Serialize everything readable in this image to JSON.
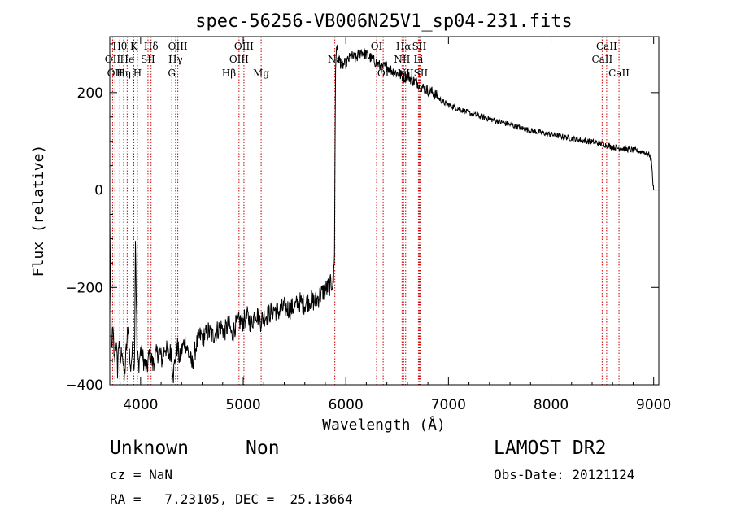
{
  "chart_data": {
    "type": "line",
    "title": "spec-56256-VB006N25V1_sp04-231.fits",
    "xlabel": "Wavelength (Å)",
    "ylabel": "Flux (relative)",
    "xlim": [
      3700,
      9050
    ],
    "ylim": [
      -400,
      315
    ],
    "xticks": [
      4000,
      5000,
      6000,
      7000,
      8000,
      9000
    ],
    "yticks": [
      -400,
      -200,
      0,
      200
    ],
    "spectrum_points": [
      [
        3700,
        -60
      ],
      [
        3715,
        -330
      ],
      [
        3730,
        -290
      ],
      [
        3745,
        -350
      ],
      [
        3760,
        -310
      ],
      [
        3775,
        -370
      ],
      [
        3790,
        -300
      ],
      [
        3800,
        -360
      ],
      [
        3820,
        -320
      ],
      [
        3840,
        -390
      ],
      [
        3860,
        -330
      ],
      [
        3880,
        -280
      ],
      [
        3900,
        -370
      ],
      [
        3920,
        -330
      ],
      [
        3940,
        -360
      ],
      [
        3950,
        -95
      ],
      [
        3965,
        -330
      ],
      [
        3980,
        -360
      ],
      [
        4000,
        -330
      ],
      [
        4030,
        -350
      ],
      [
        4060,
        -370
      ],
      [
        4090,
        -330
      ],
      [
        4120,
        -360
      ],
      [
        4150,
        -340
      ],
      [
        4180,
        -330
      ],
      [
        4210,
        -350
      ],
      [
        4240,
        -320
      ],
      [
        4270,
        -340
      ],
      [
        4300,
        -330
      ],
      [
        4320,
        -380
      ],
      [
        4340,
        -340
      ],
      [
        4360,
        -320
      ],
      [
        4380,
        -350
      ],
      [
        4400,
        -330
      ],
      [
        4430,
        -310
      ],
      [
        4460,
        -330
      ],
      [
        4500,
        -360
      ],
      [
        4540,
        -320
      ],
      [
        4580,
        -300
      ],
      [
        4620,
        -300
      ],
      [
        4660,
        -290
      ],
      [
        4700,
        -300
      ],
      [
        4740,
        -290
      ],
      [
        4780,
        -280
      ],
      [
        4820,
        -290
      ],
      [
        4860,
        -275
      ],
      [
        4890,
        -300
      ],
      [
        4920,
        -280
      ],
      [
        4960,
        -270
      ],
      [
        5000,
        -270
      ],
      [
        5040,
        -260
      ],
      [
        5080,
        -275
      ],
      [
        5120,
        -250
      ],
      [
        5170,
        -270
      ],
      [
        5200,
        -260
      ],
      [
        5250,
        -255
      ],
      [
        5300,
        -245
      ],
      [
        5350,
        -250
      ],
      [
        5400,
        -240
      ],
      [
        5450,
        -245
      ],
      [
        5500,
        -240
      ],
      [
        5550,
        -230
      ],
      [
        5600,
        -235
      ],
      [
        5650,
        -225
      ],
      [
        5700,
        -230
      ],
      [
        5750,
        -215
      ],
      [
        5800,
        -205
      ],
      [
        5850,
        -195
      ],
      [
        5880,
        -185
      ],
      [
        5890,
        -120
      ],
      [
        5900,
        250
      ],
      [
        5910,
        300
      ],
      [
        5930,
        270
      ],
      [
        5960,
        255
      ],
      [
        6000,
        260
      ],
      [
        6050,
        275
      ],
      [
        6100,
        270
      ],
      [
        6150,
        285
      ],
      [
        6200,
        278
      ],
      [
        6250,
        270
      ],
      [
        6300,
        262
      ],
      [
        6350,
        250
      ],
      [
        6400,
        255
      ],
      [
        6450,
        245
      ],
      [
        6500,
        240
      ],
      [
        6540,
        235
      ],
      [
        6560,
        230
      ],
      [
        6600,
        235
      ],
      [
        6650,
        225
      ],
      [
        6700,
        220
      ],
      [
        6750,
        210
      ],
      [
        6800,
        205
      ],
      [
        6850,
        200
      ],
      [
        6900,
        190
      ],
      [
        6950,
        180
      ],
      [
        7000,
        175
      ],
      [
        7100,
        167
      ],
      [
        7200,
        158
      ],
      [
        7300,
        152
      ],
      [
        7400,
        146
      ],
      [
        7500,
        140
      ],
      [
        7600,
        134
      ],
      [
        7700,
        128
      ],
      [
        7800,
        122
      ],
      [
        7900,
        118
      ],
      [
        8000,
        114
      ],
      [
        8100,
        110
      ],
      [
        8200,
        106
      ],
      [
        8300,
        102
      ],
      [
        8400,
        99
      ],
      [
        8500,
        95
      ],
      [
        8600,
        88
      ],
      [
        8700,
        85
      ],
      [
        8800,
        82
      ],
      [
        8900,
        78
      ],
      [
        8960,
        72
      ],
      [
        8980,
        58
      ],
      [
        8990,
        20
      ],
      [
        9000,
        0
      ]
    ],
    "line_markers": [
      {
        "wl": 3727,
        "label": "OII",
        "row": 1
      },
      {
        "wl": 3750,
        "label": "OII",
        "row": 2
      },
      {
        "wl": 3797,
        "label": "Hθ",
        "row": 0
      },
      {
        "wl": 3835,
        "label": "Hη",
        "row": 2
      },
      {
        "wl": 3869,
        "label": "He",
        "row": 1
      },
      {
        "wl": 3934,
        "label": "K",
        "row": 0
      },
      {
        "wl": 3969,
        "label": "H",
        "row": 2
      },
      {
        "wl": 4072,
        "label": "SII",
        "row": 1
      },
      {
        "wl": 4102,
        "label": "Hδ",
        "row": 0
      },
      {
        "wl": 4304,
        "label": "G",
        "row": 2
      },
      {
        "wl": 4341,
        "label": "Hγ",
        "row": 1
      },
      {
        "wl": 4363,
        "label": "OIII",
        "row": 0
      },
      {
        "wl": 4861,
        "label": "Hβ",
        "row": 2
      },
      {
        "wl": 4959,
        "label": "OIII",
        "row": 1
      },
      {
        "wl": 5007,
        "label": "OIII",
        "row": 0
      },
      {
        "wl": 5175,
        "label": "Mg",
        "row": 2
      },
      {
        "wl": 5893,
        "label": "Na",
        "row": 1
      },
      {
        "wl": 6300,
        "label": "OI",
        "row": 0
      },
      {
        "wl": 6364,
        "label": "OI",
        "row": 2
      },
      {
        "wl": 6548,
        "label": "NII",
        "row": 1
      },
      {
        "wl": 6563,
        "label": "Hα",
        "row": 0
      },
      {
        "wl": 6583,
        "label": "NII",
        "row": 2
      },
      {
        "wl": 6707,
        "label": "Li",
        "row": 1
      },
      {
        "wl": 6716,
        "label": "SII",
        "row": 0
      },
      {
        "wl": 6731,
        "label": "SII",
        "row": 2
      },
      {
        "wl": 8498,
        "label": "CaII",
        "row": 1
      },
      {
        "wl": 8542,
        "label": "CaII",
        "row": 0
      },
      {
        "wl": 8662,
        "label": "CaII",
        "row": 2
      }
    ],
    "marker_color": "#cc0000"
  },
  "footer": {
    "class_label": "Unknown",
    "subclass_label": "Non",
    "survey": "LAMOST DR2",
    "cz": "cz = NaN",
    "obs_date": "Obs-Date: 20121124",
    "coords": "RA =   7.23105, DEC =  25.13664"
  }
}
